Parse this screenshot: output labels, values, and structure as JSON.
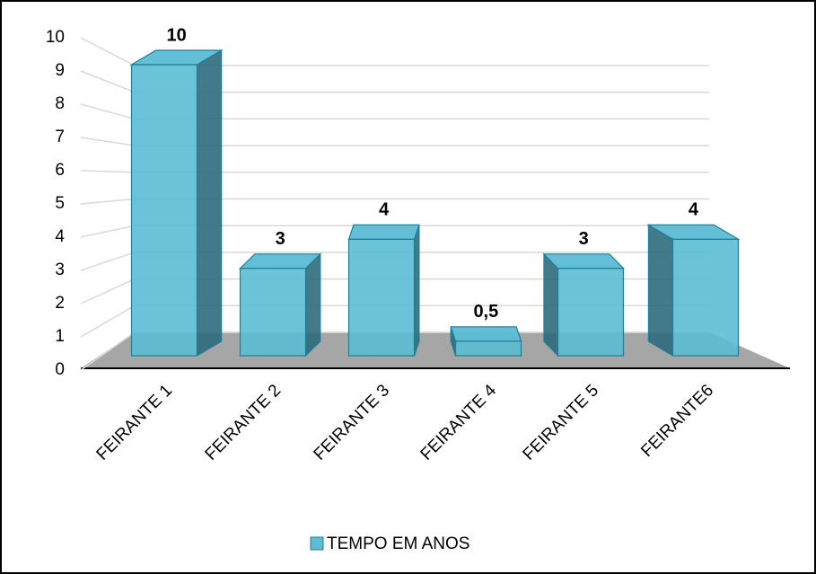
{
  "chart_data": {
    "type": "bar3d",
    "categories": [
      "FEIRANTE 1",
      "FEIRANTE 2",
      "FEIRANTE 3",
      "FEIRANTE 4",
      "FEIRANTE 5",
      "FEIRANTE6"
    ],
    "series": [
      {
        "name": "TEMPO EM ANOS",
        "color": "#5bbcd3",
        "values": [
          10,
          3,
          4,
          0.5,
          3,
          4
        ],
        "value_labels": [
          "10",
          "3",
          "4",
          "0,5",
          "3",
          "4"
        ]
      }
    ],
    "ylim": [
      0,
      10
    ],
    "yticks": [
      0,
      1,
      2,
      3,
      4,
      5,
      6,
      7,
      8,
      9,
      10
    ],
    "grid": true,
    "legend": "bottom"
  }
}
